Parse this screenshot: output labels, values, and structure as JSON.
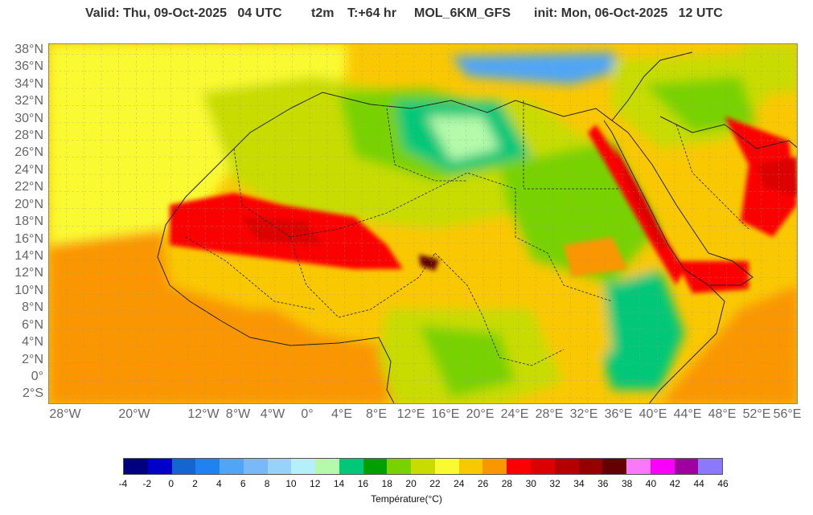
{
  "header": {
    "valid": "Valid: Thu, 09-Oct-2025   04 UTC",
    "variable": "t2m",
    "forecast_hour": "T:+64 hr",
    "model": "MOL_6KM_GFS",
    "init": "init: Mon, 06-Oct-2025   12 UTC"
  },
  "lat_ticks": [
    "38°N",
    "36°N",
    "34°N",
    "32°N",
    "30°N",
    "28°N",
    "26°N",
    "24°N",
    "22°N",
    "20°N",
    "18°N",
    "16°N",
    "14°N",
    "12°N",
    "10°N",
    "8°N",
    "6°N",
    "4°N",
    "2°N",
    "0°",
    "2°S"
  ],
  "lon_ticks": [
    "28°W",
    "20°W",
    "12°W",
    "8°W",
    "4°W",
    "0°",
    "4°E",
    "8°E",
    "12°E",
    "16°E",
    "20°E",
    "24°E",
    "28°E",
    "32°E",
    "36°E",
    "40°E",
    "44°E",
    "48°E",
    "52°E",
    "56°E"
  ],
  "colorbar": {
    "title": "Température(°C)",
    "labels": [
      "-4",
      "-2",
      "0",
      "2",
      "4",
      "6",
      "8",
      "10",
      "12",
      "14",
      "16",
      "18",
      "20",
      "22",
      "24",
      "26",
      "28",
      "30",
      "32",
      "34",
      "36",
      "38",
      "40",
      "42",
      "44",
      "46"
    ],
    "colors": [
      "#000080",
      "#0000c8",
      "#1464d2",
      "#1e82f0",
      "#50a5f5",
      "#78b9fa",
      "#96d2fa",
      "#b4f0fa",
      "#b4faaa",
      "#00c878",
      "#00a000",
      "#78d200",
      "#c8dc00",
      "#fafa32",
      "#fac800",
      "#fa9600",
      "#fa0000",
      "#dc0000",
      "#b40000",
      "#960000",
      "#640000",
      "#fa78fa",
      "#fa00fa",
      "#a000a0",
      "#8c78fa"
    ]
  }
}
